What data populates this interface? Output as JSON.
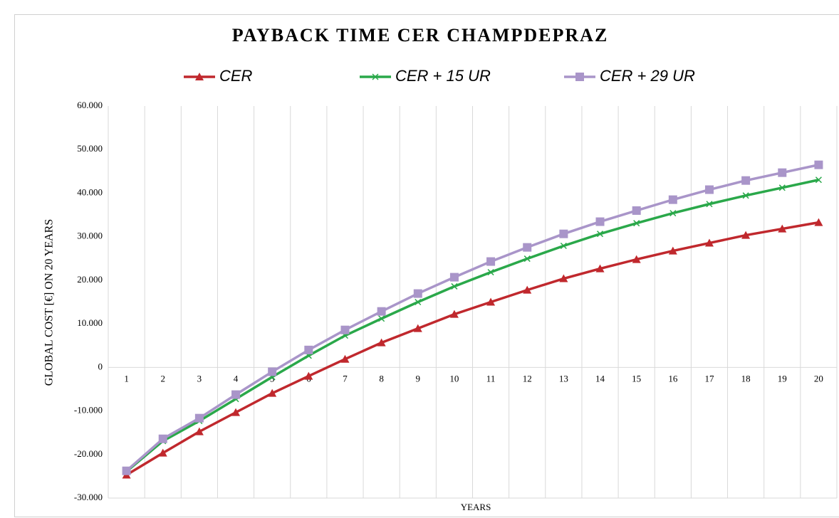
{
  "chart_data": {
    "type": "line",
    "title": "PAYBACK TIME CER CHAMPDEPRAZ",
    "x_label": "YEARS",
    "y_label": "GLOBAL COST [€] ON 20 YEARS",
    "categories": [
      "1",
      "2",
      "3",
      "4",
      "5",
      "6",
      "7",
      "8",
      "9",
      "10",
      "11",
      "12",
      "13",
      "14",
      "15",
      "16",
      "17",
      "18",
      "19",
      "20"
    ],
    "series": [
      {
        "name": "CER",
        "color": "#c0282d",
        "marker": "triangle",
        "values": [
          -24700,
          -19650,
          -14750,
          -10340,
          -5930,
          -2000,
          1900,
          5670,
          8940,
          12200,
          15000,
          17760,
          20380,
          22660,
          24790,
          26750,
          28550,
          30340,
          31810,
          33280
        ]
      },
      {
        "name": "CER + 15 UR",
        "color": "#2aa84a",
        "marker": "x",
        "values": [
          -23900,
          -16900,
          -12300,
          -7250,
          -2200,
          2700,
          7300,
          11200,
          15000,
          18600,
          21850,
          24950,
          27900,
          30650,
          33100,
          35400,
          37500,
          39450,
          41250,
          43050
        ]
      },
      {
        "name": "CER + 29 UR",
        "color": "#a995c9",
        "marker": "square",
        "values": [
          -23750,
          -16400,
          -11650,
          -6250,
          -1000,
          4000,
          8600,
          12850,
          16950,
          20700,
          24300,
          27550,
          30650,
          33450,
          36000,
          38500,
          40800,
          42900,
          44700,
          46500
        ]
      }
    ],
    "ylim": [
      -30000,
      60000
    ],
    "yticks": [
      {
        "value": -30000,
        "label": "-30.000"
      },
      {
        "value": -20000,
        "label": "-20.000"
      },
      {
        "value": -10000,
        "label": "-10.000"
      },
      0,
      {
        "value": 10000,
        "label": "10.000"
      },
      {
        "value": 20000,
        "label": "20.000"
      },
      {
        "value": 30000,
        "label": "30.000"
      },
      {
        "value": 40000,
        "label": "40.000"
      },
      {
        "value": 50000,
        "label": "50.000"
      },
      {
        "value": 60000,
        "label": "60.000"
      }
    ],
    "grid": "vertical",
    "legend": "top"
  }
}
